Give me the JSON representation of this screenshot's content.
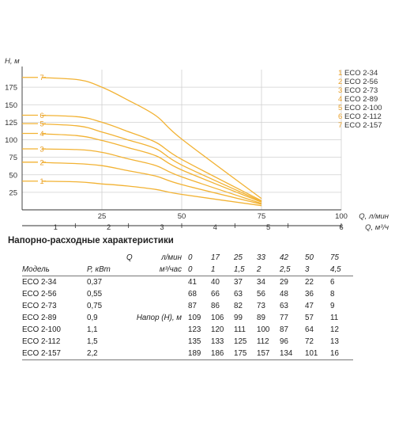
{
  "chart_data": {
    "type": "line",
    "ylabel": "H, м",
    "y_ticks": [
      "25",
      "50",
      "75",
      "100",
      "125",
      "150",
      "175"
    ],
    "xlabel_primary": "Q, л/мин",
    "x_ticks_primary": [
      "25",
      "50",
      "75",
      "100"
    ],
    "xlabel_secondary": "Q, м³/ч",
    "x_ticks_secondary": [
      "1",
      "2",
      "3",
      "4",
      "5",
      "6"
    ],
    "xlim": [
      0,
      100
    ],
    "ylim": [
      0,
      200
    ],
    "grid": true,
    "legend_position": "top-right",
    "x": [
      0,
      17,
      25,
      33,
      42,
      50,
      75
    ],
    "series": [
      {
        "id": "1",
        "name": "ECO 2-34",
        "values": [
          41,
          40,
          37,
          34,
          29,
          22,
          6
        ]
      },
      {
        "id": "2",
        "name": "ECO 2-56",
        "values": [
          68,
          66,
          63,
          56,
          48,
          36,
          8
        ]
      },
      {
        "id": "3",
        "name": "ECO 2-73",
        "values": [
          87,
          86,
          82,
          73,
          63,
          47,
          9
        ]
      },
      {
        "id": "4",
        "name": "ECO 2-89",
        "values": [
          109,
          106,
          99,
          89,
          77,
          57,
          11
        ]
      },
      {
        "id": "5",
        "name": "ECO 2-100",
        "values": [
          123,
          120,
          111,
          100,
          87,
          64,
          12
        ]
      },
      {
        "id": "6",
        "name": "ECO 2-112",
        "values": [
          135,
          133,
          125,
          112,
          96,
          72,
          13
        ]
      },
      {
        "id": "7",
        "name": "ECO 2-157",
        "values": [
          189,
          186,
          175,
          157,
          134,
          101,
          16
        ]
      }
    ]
  },
  "colors": {
    "curve": "#f2b233",
    "curve_label": "#e8a02a",
    "grid": "#d0d0d0",
    "axis": "#333333"
  },
  "table": {
    "title": "Напорно-расходные характеристики",
    "q_label": "Q",
    "unit_lmin": "л/мин",
    "unit_m3h": "м³/час",
    "col_model": "Модель",
    "col_power": "Р, кВт",
    "head_label": "Напор (Н), м",
    "flow_lmin": [
      "0",
      "17",
      "25",
      "33",
      "42",
      "50",
      "75"
    ],
    "flow_m3h": [
      "0",
      "1",
      "1,5",
      "2",
      "2,5",
      "3",
      "4,5"
    ],
    "rows": [
      {
        "model": "ECO 2-34",
        "power": "0,37",
        "heads": [
          "41",
          "40",
          "37",
          "34",
          "29",
          "22",
          "6"
        ]
      },
      {
        "model": "ECO 2-56",
        "power": "0,55",
        "heads": [
          "68",
          "66",
          "63",
          "56",
          "48",
          "36",
          "8"
        ]
      },
      {
        "model": "ECO 2-73",
        "power": "0,75",
        "heads": [
          "87",
          "86",
          "82",
          "73",
          "63",
          "47",
          "9"
        ]
      },
      {
        "model": "ECO 2-89",
        "power": "0,9",
        "heads": [
          "109",
          "106",
          "99",
          "89",
          "77",
          "57",
          "11"
        ]
      },
      {
        "model": "ECO 2-100",
        "power": "1,1",
        "heads": [
          "123",
          "120",
          "111",
          "100",
          "87",
          "64",
          "12"
        ]
      },
      {
        "model": "ECO 2-112",
        "power": "1,5",
        "heads": [
          "135",
          "133",
          "125",
          "112",
          "96",
          "72",
          "13"
        ]
      },
      {
        "model": "ECO 2-157",
        "power": "2,2",
        "heads": [
          "189",
          "186",
          "175",
          "157",
          "134",
          "101",
          "16"
        ]
      }
    ]
  }
}
